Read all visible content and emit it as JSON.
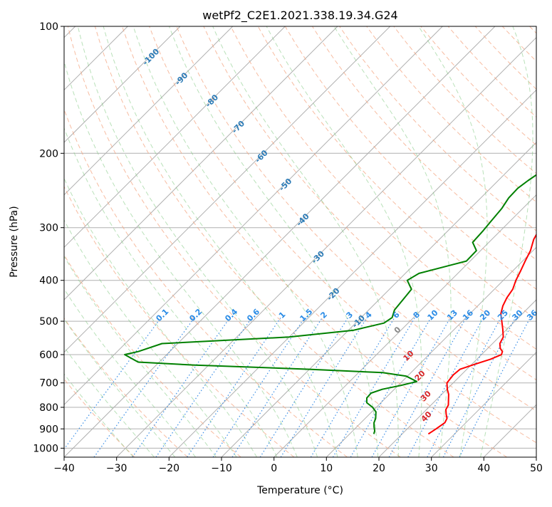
{
  "chart_data": {
    "type": "line",
    "chart_kind": "skew-T log-P diagram",
    "title": "wetPf2_C2E1.2021.338.19.34.G24",
    "xlabel": "Temperature (°C)",
    "ylabel": "Pressure (hPa)",
    "xlim": [
      -40,
      50
    ],
    "ylim": [
      1050,
      100
    ],
    "y_scale": "log",
    "grid": true,
    "x_ticks": [
      -40,
      -30,
      -20,
      -10,
      0,
      10,
      20,
      30,
      40,
      50
    ],
    "y_ticks": [
      100,
      200,
      300,
      400,
      500,
      600,
      700,
      800,
      900,
      1000
    ],
    "series": [
      {
        "color": "#ff0000",
        "points": [
          [
            25.0,
            925
          ],
          [
            25.5,
            900
          ],
          [
            26.0,
            870
          ],
          [
            25.6,
            850
          ],
          [
            24.6,
            830
          ],
          [
            23.7,
            810
          ],
          [
            23.3,
            790
          ],
          [
            22.2,
            765
          ],
          [
            21.3,
            745
          ],
          [
            20.1,
            725
          ],
          [
            18.8,
            700
          ],
          [
            18.5,
            670
          ],
          [
            18.7,
            650
          ],
          [
            20.6,
            632
          ],
          [
            22.6,
            615
          ],
          [
            23.8,
            600
          ],
          [
            23.4,
            590
          ],
          [
            22.4,
            580
          ],
          [
            21.4,
            565
          ],
          [
            20.8,
            545
          ],
          [
            19.2,
            522
          ],
          [
            17.5,
            500
          ],
          [
            15.9,
            480
          ],
          [
            14.8,
            460
          ],
          [
            14.0,
            440
          ],
          [
            13.5,
            420
          ],
          [
            12.4,
            400
          ],
          [
            11.5,
            380
          ],
          [
            10.5,
            360
          ],
          [
            9.5,
            340
          ],
          [
            8.0,
            320
          ],
          [
            7.0,
            300
          ],
          [
            6.2,
            280
          ],
          [
            4.9,
            262
          ],
          [
            2.6,
            248
          ],
          [
            2.6,
            238
          ],
          [
            3.2,
            230
          ],
          [
            4.9,
            218
          ],
          [
            6.8,
            206
          ],
          [
            8.1,
            195
          ],
          [
            8.6,
            180
          ],
          [
            8.4,
            160
          ],
          [
            7.8,
            150
          ],
          [
            7.6,
            140
          ],
          [
            7.9,
            130
          ],
          [
            7.4,
            125
          ],
          [
            7.0,
            117
          ],
          [
            7.8,
            109
          ],
          [
            10.2,
            100
          ]
        ]
      },
      {
        "color": "#008000",
        "points": [
          [
            14.6,
            925
          ],
          [
            14.2,
            910
          ],
          [
            13.3,
            890
          ],
          [
            12.5,
            870
          ],
          [
            12.0,
            850
          ],
          [
            10.8,
            820
          ],
          [
            9.3,
            800
          ],
          [
            7.3,
            780
          ],
          [
            6.4,
            760
          ],
          [
            6.3,
            740
          ],
          [
            7.7,
            725
          ],
          [
            10.5,
            710
          ],
          [
            12.8,
            695
          ],
          [
            9.8,
            675
          ],
          [
            4.6,
            662
          ],
          [
            -10.0,
            650
          ],
          [
            -33.0,
            635
          ],
          [
            -44.0,
            625
          ],
          [
            -48.0,
            600
          ],
          [
            -46.0,
            590
          ],
          [
            -43.0,
            565
          ],
          [
            -20.0,
            545
          ],
          [
            -9.0,
            525
          ],
          [
            -4.6,
            505
          ],
          [
            -4.1,
            490
          ],
          [
            -5.1,
            470
          ],
          [
            -5.5,
            440
          ],
          [
            -5.8,
            420
          ],
          [
            -8.3,
            400
          ],
          [
            -7.4,
            385
          ],
          [
            -0.7,
            360
          ],
          [
            -0.8,
            340
          ],
          [
            -3.1,
            325
          ],
          [
            -3.3,
            305
          ],
          [
            -3.6,
            290
          ],
          [
            -4.0,
            270
          ],
          [
            -4.7,
            255
          ],
          [
            -4.8,
            242
          ],
          [
            -4.3,
            232
          ],
          [
            -3.3,
            218
          ],
          [
            -3.5,
            210
          ],
          [
            -2.8,
            200
          ],
          [
            -2.3,
            190
          ],
          [
            -1.7,
            180
          ],
          [
            0.2,
            165
          ],
          [
            1.7,
            150
          ],
          [
            2.0,
            140
          ],
          [
            2.6,
            130
          ],
          [
            3.2,
            120
          ],
          [
            4.2,
            110
          ],
          [
            4.5,
            100
          ]
        ]
      }
    ],
    "mixing_ratio_labels": [
      "0.1",
      "0.2",
      "0.4",
      "0.6",
      "1",
      "1.5",
      "2",
      "3",
      "4",
      "6",
      "8",
      "10",
      "13",
      "16",
      "20",
      "25",
      "30",
      "36"
    ],
    "dry_adiabat_labels": [
      "-100",
      "-90",
      "-80",
      "-70",
      "-60",
      "-50",
      "-40",
      "-30",
      "-20",
      "-10"
    ],
    "moist_adiabat_labels": [
      "0",
      "10",
      "20",
      "30",
      "40"
    ]
  }
}
